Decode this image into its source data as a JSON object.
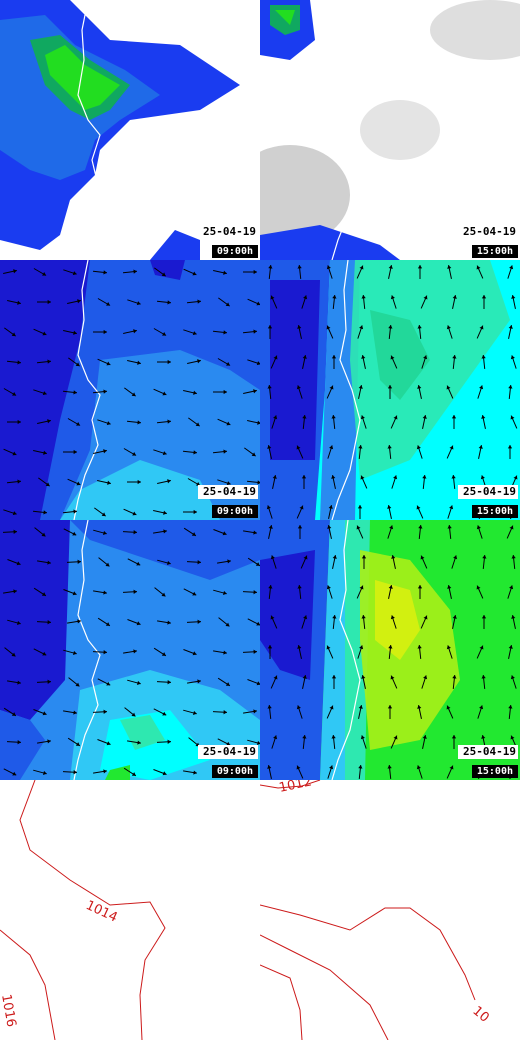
{
  "panels": [
    {
      "id": "precip-0900",
      "date": "25-04-19",
      "hour": "09:00h"
    },
    {
      "id": "precip-1500",
      "date": "25-04-19",
      "hour": "15:00h"
    },
    {
      "id": "wind850-0900",
      "date": "25-04-19",
      "hour": "09:00h"
    },
    {
      "id": "wind850-1500",
      "date": "25-04-19",
      "hour": "15:00h"
    },
    {
      "id": "wind10m-0900",
      "date": "25-04-19",
      "hour": "09:00h"
    },
    {
      "id": "wind10m-1500",
      "date": "25-04-19",
      "hour": "15:00h"
    }
  ],
  "pressure_panels": [
    {
      "id": "pressure-0900",
      "isobars": [
        "1014",
        "1016"
      ]
    },
    {
      "id": "pressure-1500",
      "isobars": [
        "1012",
        "10"
      ]
    }
  ],
  "colors": {
    "dark_blue": "#1a1ad0",
    "blue": "#1f5ae8",
    "mid_blue": "#2a8af0",
    "light_blue": "#30c8f5",
    "cyan": "#00ffff",
    "aqua_green": "#2ee8b0",
    "green": "#22e830",
    "yellow_green": "#a8f018",
    "isobar_red": "#cc1a1a",
    "coast_white": "#ffffff"
  }
}
